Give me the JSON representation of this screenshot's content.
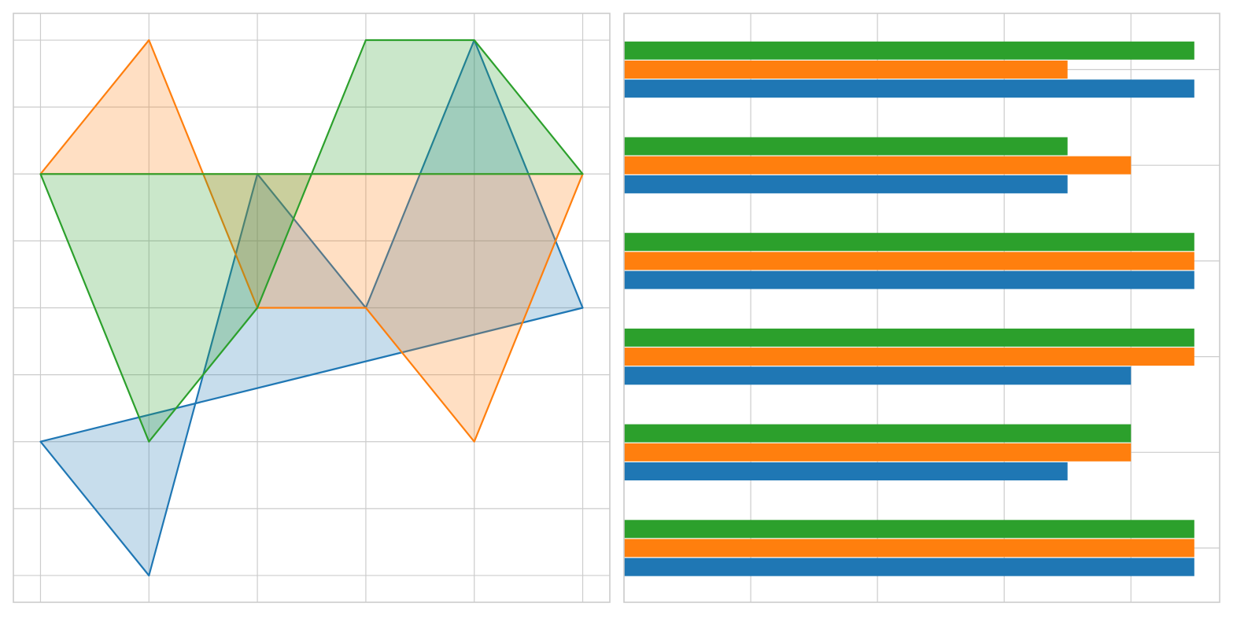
{
  "colors": {
    "blue": "#1f77b4",
    "orange": "#ff7f0e",
    "green": "#2ca02c",
    "grid": "#cccccc",
    "frame": "#cccccc"
  },
  "chart_data": [
    {
      "type": "area",
      "title": "",
      "xlabel": "",
      "ylabel": "",
      "xlim": [
        -0.25,
        5.25
      ],
      "ylim": [
        -0.2,
        4.2
      ],
      "xticks": [
        0,
        1,
        2,
        3,
        4,
        5
      ],
      "yticks": [
        0,
        0.5,
        1,
        1.5,
        2,
        2.5,
        3,
        3.5,
        4
      ],
      "grid": true,
      "fill_alpha": 0.25,
      "series": [
        {
          "color": "#1f77b4",
          "x": [
            0,
            1,
            2,
            3,
            4,
            5,
            0
          ],
          "y": [
            1,
            0,
            3,
            2,
            4,
            2,
            1
          ]
        },
        {
          "color": "#ff7f0e",
          "x": [
            0,
            1,
            2,
            3,
            4,
            5,
            0
          ],
          "y": [
            3,
            4,
            2,
            2,
            1,
            3,
            3
          ]
        },
        {
          "color": "#2ca02c",
          "x": [
            0,
            1,
            2,
            3,
            4,
            5,
            0
          ],
          "y": [
            3,
            1,
            2,
            4,
            4,
            3,
            3
          ]
        }
      ]
    },
    {
      "type": "bar",
      "orientation": "horizontal",
      "title": "",
      "xlabel": "",
      "ylabel": "",
      "xlim": [
        0,
        4.7
      ],
      "xticks": [
        0,
        1,
        2,
        3,
        4
      ],
      "grid": true,
      "categories": [
        "",
        "",
        "",
        "",
        "",
        ""
      ],
      "series": [
        {
          "color": "#1f77b4",
          "values": [
            4.5,
            3.5,
            4.5,
            4,
            3.5,
            4.5
          ]
        },
        {
          "color": "#ff7f0e",
          "values": [
            3.5,
            4,
            4.5,
            4.5,
            4,
            4.5
          ]
        },
        {
          "color": "#2ca02c",
          "values": [
            4.5,
            3.5,
            4.5,
            4.5,
            4,
            4.5
          ]
        }
      ]
    }
  ]
}
